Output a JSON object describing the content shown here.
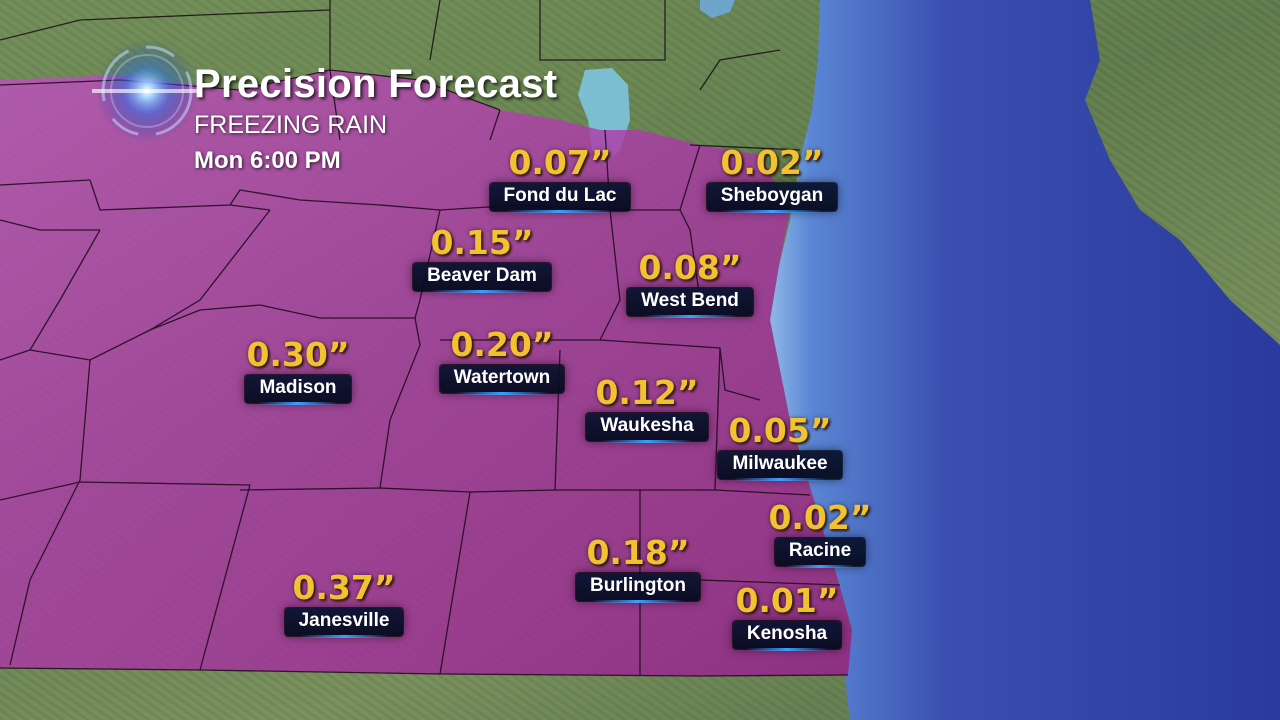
{
  "header": {
    "title": "Precision Forecast",
    "subtitle": "FREEZING RAIN",
    "time": "Mon 6:00 PM"
  },
  "colors": {
    "overlay": "#a8329c",
    "amount": "#f2c230",
    "lake": "#3a4fb0",
    "label_bg": "#0a1432"
  },
  "stations": [
    {
      "name": "Fond du Lac",
      "amount": "0.07”"
    },
    {
      "name": "Sheboygan",
      "amount": "0.02”"
    },
    {
      "name": "Beaver Dam",
      "amount": "0.15”"
    },
    {
      "name": "West Bend",
      "amount": "0.08”"
    },
    {
      "name": "Madison",
      "amount": "0.30”"
    },
    {
      "name": "Watertown",
      "amount": "0.20”"
    },
    {
      "name": "Waukesha",
      "amount": "0.12”"
    },
    {
      "name": "Milwaukee",
      "amount": "0.05”"
    },
    {
      "name": "Racine",
      "amount": "0.02”"
    },
    {
      "name": "Burlington",
      "amount": "0.18”"
    },
    {
      "name": "Kenosha",
      "amount": "0.01”"
    },
    {
      "name": "Janesville",
      "amount": "0.37”"
    }
  ]
}
